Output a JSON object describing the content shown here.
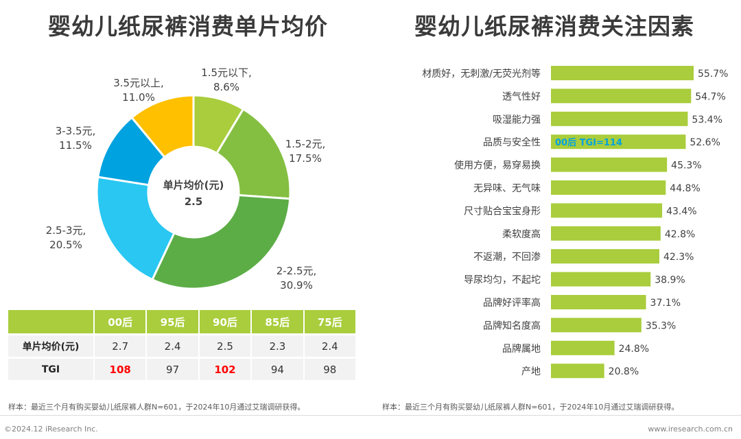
{
  "left_title": "婴幼儿纸尿裤消费单片均价",
  "right_title": "婴幼儿纸尿裤消费关注因素",
  "chart_data": [
    {
      "type": "pie",
      "title": "婴幼儿纸尿裤消费单片均价",
      "center_label": "单片均价(元)",
      "center_value": "2.5",
      "slices": [
        {
          "name": "1.5元以下,",
          "value": 8.6,
          "label": "8.6%",
          "color": "#a9cd3c"
        },
        {
          "name": "1.5-2元,",
          "value": 17.5,
          "label": "17.5%",
          "color": "#84bf41"
        },
        {
          "name": "2-2.5元,",
          "value": 30.9,
          "label": "30.9%",
          "color": "#5cad46"
        },
        {
          "name": "2.5-3元,",
          "value": 20.5,
          "label": "20.5%",
          "color": "#29c7f2"
        },
        {
          "name": "3-3.5元,",
          "value": 11.5,
          "label": "11.5%",
          "color": "#00a2df"
        },
        {
          "name": "3.5元以上,",
          "value": 11.0,
          "label": "11.0%",
          "color": "#ffc000"
        }
      ]
    },
    {
      "type": "table",
      "columns": [
        "",
        "00后",
        "95后",
        "90后",
        "85后",
        "75后"
      ],
      "rows": [
        {
          "label": "单片均价(元)",
          "values": [
            "2.7",
            "2.4",
            "2.5",
            "2.3",
            "2.4"
          ],
          "highlight": [
            false,
            false,
            false,
            false,
            false
          ]
        },
        {
          "label": "TGI",
          "values": [
            "108",
            "97",
            "102",
            "94",
            "98"
          ],
          "highlight": [
            true,
            false,
            true,
            false,
            false
          ]
        }
      ]
    },
    {
      "type": "bar",
      "orientation": "horizontal",
      "title": "婴幼儿纸尿裤消费关注因素",
      "categories": [
        "材质好，无刺激/无荧光剂等",
        "透气性好",
        "吸湿能力强",
        "品质与安全性",
        "使用方便，易穿易换",
        "无异味、无气味",
        "尺寸贴合宝宝身形",
        "柔软度高",
        "不返潮，不回渗",
        "导尿均匀，不起坨",
        "品牌好评率高",
        "品牌知名度高",
        "品牌属地",
        "产地"
      ],
      "values": [
        55.7,
        54.7,
        53.4,
        52.6,
        45.3,
        44.8,
        43.4,
        42.8,
        42.3,
        38.9,
        37.1,
        35.3,
        24.8,
        20.8
      ],
      "value_labels": [
        "55.7%",
        "54.7%",
        "53.4%",
        "52.6%",
        "45.3%",
        "44.8%",
        "43.4%",
        "42.8%",
        "42.3%",
        "38.9%",
        "37.1%",
        "35.3%",
        "24.8%",
        "20.8%"
      ],
      "bar_color": "#a9cd3c",
      "annotation": {
        "category_index": 3,
        "text": "00后 TGI=114",
        "color": "#00a2df"
      }
    }
  ],
  "footnote_left": "样本：最近三个月有购买婴幼儿纸尿裤人群N=601，于2024年10月通过艾瑞调研获得。",
  "footnote_right": "样本：最近三个月有购买婴幼儿纸尿裤人群N=601，于2024年10月通过艾瑞调研获得。",
  "copyright": "©2024.12 iResearch Inc.",
  "website": "www.iresearch.com.cn"
}
